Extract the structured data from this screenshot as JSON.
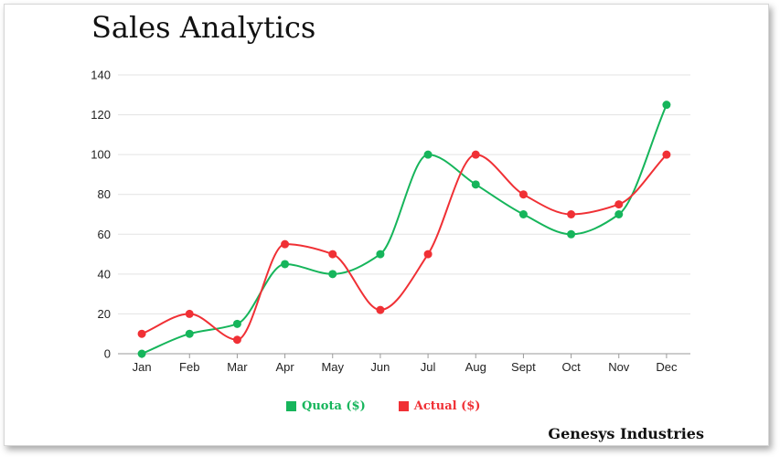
{
  "header": {
    "title": "Sales Analytics"
  },
  "footer": {
    "brand": "Genesys Industries"
  },
  "chart_data": {
    "type": "line",
    "title": "Sales Analytics",
    "xlabel": "",
    "ylabel": "",
    "categories": [
      "Jan",
      "Feb",
      "Mar",
      "Apr",
      "May",
      "Jun",
      "Jul",
      "Aug",
      "Sept",
      "Oct",
      "Nov",
      "Dec"
    ],
    "ylim": [
      0,
      140
    ],
    "yticks": [
      0,
      20,
      40,
      60,
      80,
      100,
      120,
      140
    ],
    "grid": true,
    "legend": "bottom",
    "smooth": true,
    "series": [
      {
        "name": "Quota ($)",
        "color": "#16b55b",
        "values": [
          0,
          10,
          15,
          45,
          40,
          50,
          100,
          85,
          70,
          60,
          70,
          125
        ]
      },
      {
        "name": "Actual ($)",
        "color": "#f03035",
        "values": [
          10,
          20,
          7,
          55,
          50,
          22,
          50,
          100,
          80,
          70,
          75,
          100
        ]
      }
    ]
  }
}
